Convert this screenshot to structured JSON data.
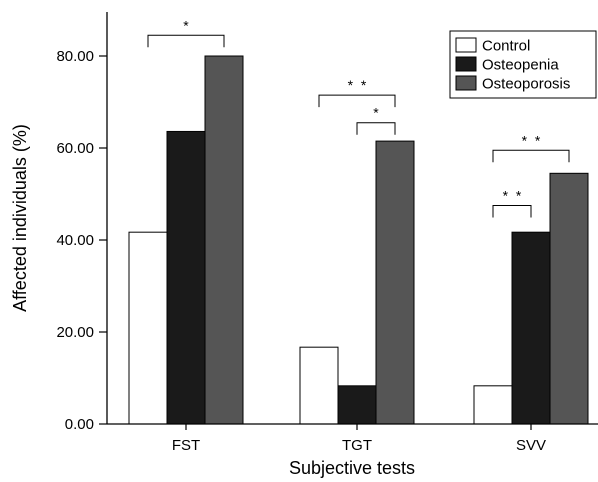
{
  "chart_data": {
    "type": "bar",
    "xlabel": "Subjective tests",
    "ylabel": "Affected individuals (%)",
    "ylim": [
      0,
      90
    ],
    "yticks": [
      0,
      20,
      40,
      60,
      80
    ],
    "ytick_labels": [
      "0.00",
      "20.00",
      "40.00",
      "60.00",
      "80.00"
    ],
    "categories": [
      "FST",
      "TGT",
      "SVV"
    ],
    "series": [
      {
        "name": "Control",
        "color": "#ffffff",
        "values": [
          41.7,
          16.7,
          8.3
        ]
      },
      {
        "name": "Osteopenia",
        "color": "#1a1a1a",
        "values": [
          63.6,
          8.3,
          41.7
        ]
      },
      {
        "name": "Osteoporosis",
        "color": "#555555",
        "values": [
          80.0,
          61.5,
          54.5
        ]
      }
    ],
    "legend": {
      "position": "top-right",
      "frame": true
    },
    "significance": [
      {
        "category": "FST",
        "from": 0,
        "to": 2,
        "label": "*",
        "y": 84.5
      },
      {
        "category": "TGT",
        "from": 0,
        "to": 2,
        "label": "* *",
        "y": 71.5
      },
      {
        "category": "TGT",
        "from": 1,
        "to": 2,
        "label": "*",
        "y": 65.5
      },
      {
        "category": "SVV",
        "from": 0,
        "to": 2,
        "label": "* *",
        "y": 59.5
      },
      {
        "category": "SVV",
        "from": 0,
        "to": 1,
        "label": "* *",
        "y": 47.5
      }
    ]
  }
}
